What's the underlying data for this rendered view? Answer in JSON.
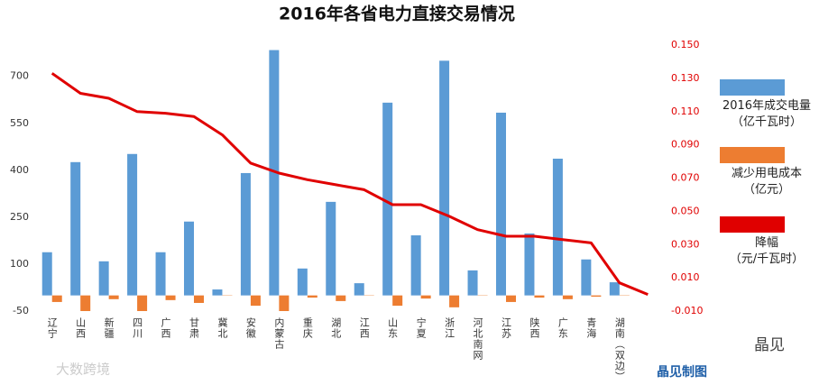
{
  "chart_data": {
    "type": "bar_line",
    "title": "2016年各省电力直接交易情况",
    "categories": [
      "辽宁",
      "山西",
      "新疆",
      "四川",
      "广西",
      "甘肃",
      "冀北",
      "安徽",
      "内蒙古",
      "重庆",
      "湖北",
      "江西",
      "山东",
      "宁夏",
      "浙江",
      "河北南网",
      "江苏",
      "陕西",
      "广东",
      "青海",
      "湖南（双边）",
      null
    ],
    "series": [
      {
        "name": "2016年成交电量\n（亿千瓦时）",
        "color": "#5b9bd5",
        "type": "bar",
        "axis": "y",
        "values": [
          138,
          426,
          109,
          452,
          138,
          236,
          19,
          391,
          784,
          86,
          299,
          39,
          616,
          192,
          750,
          80,
          584,
          198,
          437,
          115,
          42,
          null
        ]
      },
      {
        "name": "减少用电成本\n（亿元）",
        "color": "#ed7d31",
        "type": "bar",
        "axis": "y",
        "values": [
          -21,
          -50,
          -12,
          -50,
          -15,
          -24,
          -1,
          -33,
          -50,
          -7,
          -18,
          -1,
          -33,
          -10,
          -38,
          -1,
          -21,
          -7,
          -12,
          -4,
          -1,
          null
        ]
      },
      {
        "name": "降幅\n（元/千瓦时）",
        "color": "#e00000",
        "type": "line",
        "axis": "y2",
        "values": [
          0.133,
          0.121,
          0.118,
          0.11,
          0.109,
          0.107,
          0.096,
          0.079,
          0.073,
          0.069,
          0.066,
          0.063,
          0.054,
          0.054,
          0.047,
          0.039,
          0.035,
          0.035,
          0.033,
          0.031,
          0.007,
          0.0
        ]
      }
    ],
    "ylim": [
      -50,
      800
    ],
    "yticks": [
      -50,
      100,
      250,
      400,
      550,
      700
    ],
    "y2lim": [
      -0.01,
      0.15
    ],
    "y2ticks": [
      {
        "value": -0.01,
        "label": "-0.010"
      },
      {
        "value": 0.01,
        "label": "0.010"
      },
      {
        "value": 0.03,
        "label": "0.030"
      },
      {
        "value": 0.05,
        "label": "0.050"
      },
      {
        "value": 0.07,
        "label": "0.070"
      },
      {
        "value": 0.09,
        "label": "0.090"
      },
      {
        "value": 0.11,
        "label": "0.110"
      },
      {
        "value": 0.13,
        "label": "0.130"
      },
      {
        "value": 0.15,
        "label": "0.150"
      }
    ],
    "y2_color": "#e00000",
    "legend": "right",
    "annotations": [
      "晶见制图",
      "晶见",
      "大数跨境"
    ]
  }
}
